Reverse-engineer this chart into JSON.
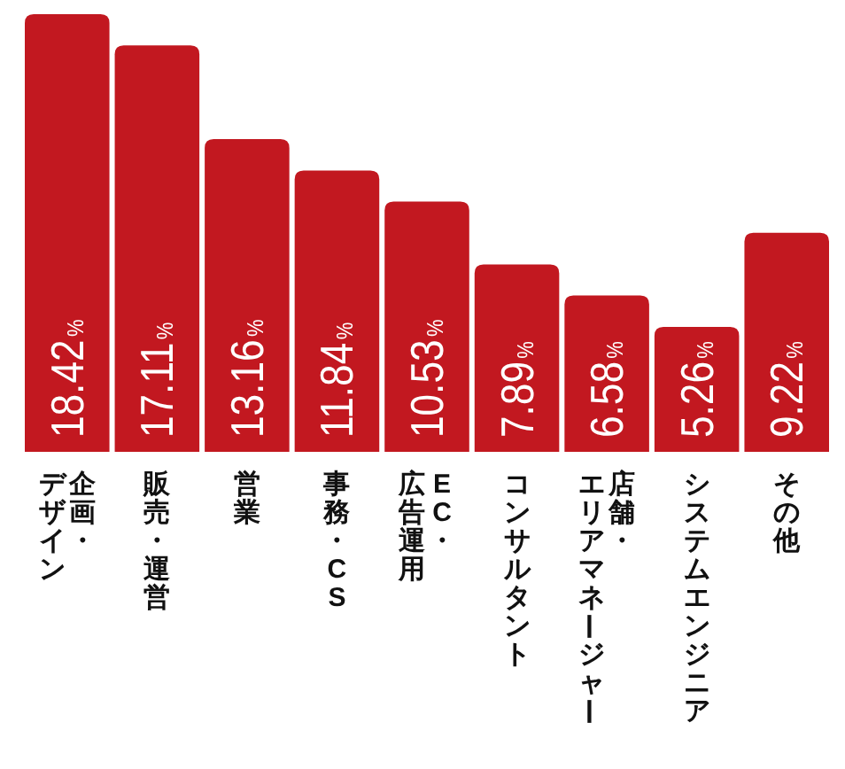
{
  "chart_data": {
    "type": "bar",
    "categories": [
      "企画・デザイン",
      "販売・運営",
      "営業",
      "事務・CS",
      "EC・広告運用",
      "コンサルタント",
      "店舗・エリアマネージャー",
      "システムエンジニア",
      "その他"
    ],
    "values": [
      18.42,
      17.11,
      13.16,
      11.84,
      10.53,
      7.89,
      6.58,
      5.26,
      9.22
    ],
    "value_labels": [
      "18.42%",
      "17.11%",
      "13.16%",
      "11.84%",
      "10.53%",
      "7.89%",
      "6.58%",
      "5.26%",
      "9.22%"
    ],
    "color": "#c21820"
  }
}
